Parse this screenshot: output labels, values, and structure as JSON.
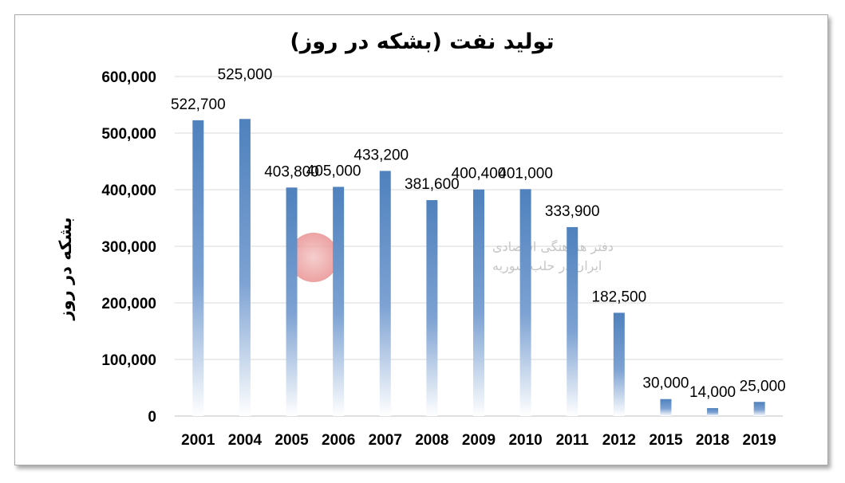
{
  "chart_data": {
    "type": "bar",
    "title": "تولید نفت (بشکه در روز)",
    "ylabel": "بشکه در روز",
    "xlabel": "",
    "categories": [
      "2001",
      "2004",
      "2005",
      "2006",
      "2007",
      "2008",
      "2009",
      "2010",
      "2011",
      "2012",
      "2015",
      "2018",
      "2019"
    ],
    "values": [
      522700,
      525000,
      403800,
      405000,
      433200,
      381600,
      400400,
      401000,
      333900,
      182500,
      30000,
      14000,
      25000
    ],
    "data_labels": [
      "522,700",
      "525,000",
      "403,800",
      "405,000",
      "433,200",
      "381,600",
      "400,400",
      "401,000",
      "333,900",
      "182,500",
      "30,000",
      "14,000",
      "25,000"
    ],
    "ylim": [
      0,
      600000
    ],
    "yticks": [
      0,
      100000,
      200000,
      300000,
      400000,
      500000,
      600000
    ],
    "ytick_labels": [
      "0",
      "100,000",
      "200,000",
      "300,000",
      "400,000",
      "500,000",
      "600,000"
    ],
    "grid": true,
    "legend": "none",
    "bar_color": "#4f81bd"
  },
  "watermark": {
    "line1": "دفتر هماهنگی اقتصادی",
    "line2": "ایران در حلب سوریه"
  }
}
